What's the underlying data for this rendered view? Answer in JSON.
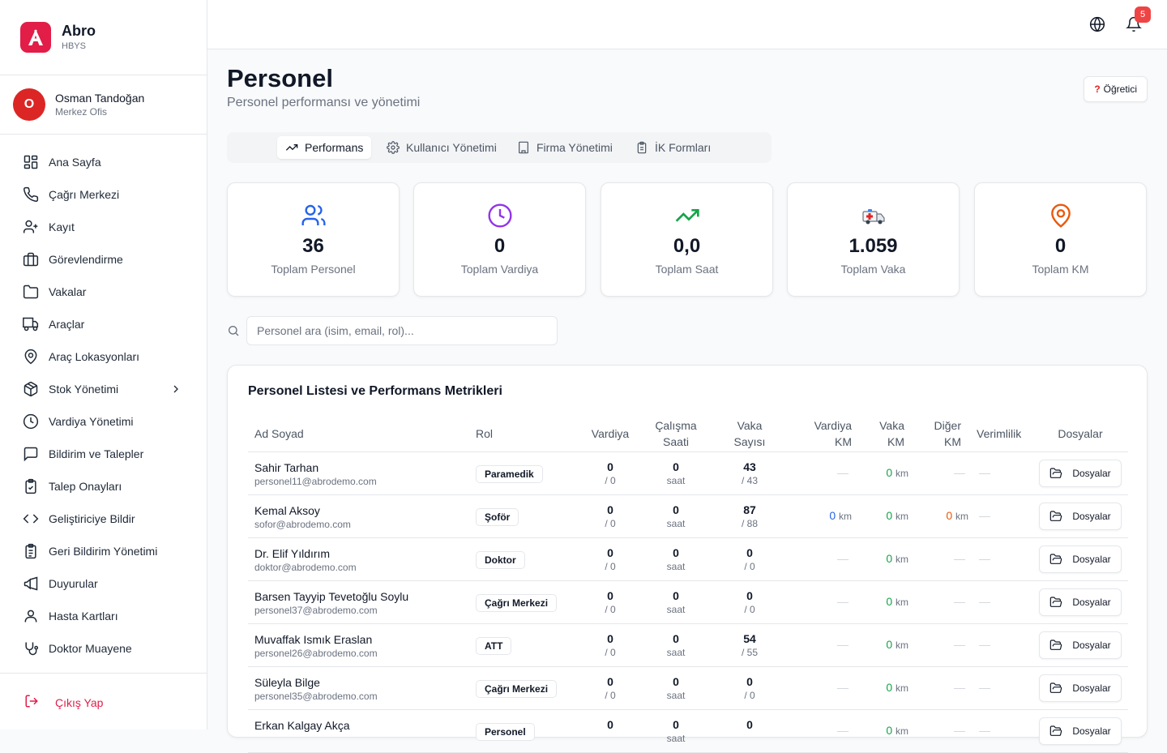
{
  "brand": {
    "name": "Abro",
    "sub": "HBYS",
    "logo_letter": "A",
    "color": "#e11d48"
  },
  "user": {
    "initial": "O",
    "name": "Osman Tandoğan",
    "role": "Merkez Ofis"
  },
  "nav": [
    {
      "label": "Ana Sayfa",
      "icon": "dashboard-icon"
    },
    {
      "label": "Çağrı Merkezi",
      "icon": "phone-icon"
    },
    {
      "label": "Kayıt",
      "icon": "user-plus-icon"
    },
    {
      "label": "Görevlendirme",
      "icon": "briefcase-icon"
    },
    {
      "label": "Vakalar",
      "icon": "folder-icon"
    },
    {
      "label": "Araçlar",
      "icon": "truck-icon"
    },
    {
      "label": "Araç Lokasyonları",
      "icon": "map-pin-icon"
    },
    {
      "label": "Stok Yönetimi",
      "icon": "package-icon"
    },
    {
      "label": "Vardiya Yönetimi",
      "icon": "clock-icon"
    },
    {
      "label": "Bildirim ve Talepler",
      "icon": "message-icon"
    },
    {
      "label": "Talep Onayları",
      "icon": "clipboard-check-icon"
    },
    {
      "label": "Geliştiriciye Bildir",
      "icon": "code-icon"
    },
    {
      "label": "Geri Bildirim Yönetimi",
      "icon": "clipboard-list-icon"
    },
    {
      "label": "Duyurular",
      "icon": "megaphone-icon"
    },
    {
      "label": "Hasta Kartları",
      "icon": "user-icon"
    },
    {
      "label": "Doktor Muayene",
      "icon": "stethoscope-icon"
    }
  ],
  "logout_label": "Çıkış Yap",
  "topbar": {
    "notification_count": "5"
  },
  "page": {
    "title": "Personel",
    "subtitle": "Personel performansı ve yönetimi",
    "tutorial_label": "Öğretici"
  },
  "tabs": [
    {
      "label": "Performans",
      "icon": "trending-up-icon",
      "active": true
    },
    {
      "label": "Kullanıcı Yönetimi",
      "icon": "gear-icon",
      "active": false
    },
    {
      "label": "Firma Yönetimi",
      "icon": "building-icon",
      "active": false
    },
    {
      "label": "İK Formları",
      "icon": "clipboard-icon",
      "active": false
    }
  ],
  "stats": [
    {
      "value": "36",
      "label": "Toplam Personel",
      "icon": "users-icon",
      "color": "#2563eb"
    },
    {
      "value": "0",
      "label": "Toplam Vardiya",
      "icon": "clock-icon",
      "color": "#9333ea"
    },
    {
      "value": "0,0",
      "label": "Toplam Saat",
      "icon": "trending-up-icon",
      "color": "#16a34a"
    },
    {
      "value": "1.059",
      "label": "Toplam Vaka",
      "icon": "ambulance-icon",
      "color": "#dc2626"
    },
    {
      "value": "0",
      "label": "Toplam KM",
      "icon": "map-pin-icon",
      "color": "#ea580c"
    }
  ],
  "search": {
    "placeholder": "Personel ara (isim, email, rol)..."
  },
  "table": {
    "title": "Personel Listesi ve Performans Metrikleri",
    "headers": {
      "name": "Ad Soyad",
      "role": "Rol",
      "shift": "Vardiya",
      "hours_1": "Çalışma",
      "hours_2": "Saati",
      "cases_1": "Vaka",
      "cases_2": "Sayısı",
      "shift_km_1": "Vardiya",
      "shift_km_2": "KM",
      "case_km_1": "Vaka",
      "case_km_2": "KM",
      "other_km_1": "Diğer",
      "other_km_2": "KM",
      "efficiency": "Verimlilik",
      "files": "Dosyalar"
    },
    "dash": "—",
    "km_unit": "km",
    "hours_unit": "saat",
    "files_label": "Dosyalar",
    "rows": [
      {
        "name": "Sahir Tarhan",
        "email": "personel11@abrodemo.com",
        "role": "Paramedik",
        "shift": "0",
        "shift_total": "/ 0",
        "hours": "0",
        "cases": "43",
        "cases_total": "/ 43",
        "shift_km": null,
        "case_km": "0",
        "other_km": null,
        "efficiency": null
      },
      {
        "name": "Kemal Aksoy",
        "email": "sofor@abrodemo.com",
        "role": "Şoför",
        "shift": "0",
        "shift_total": "/ 0",
        "hours": "0",
        "cases": "87",
        "cases_total": "/ 88",
        "shift_km": "0",
        "case_km": "0",
        "other_km": "0",
        "efficiency": null
      },
      {
        "name": "Dr. Elif Yıldırım",
        "email": "doktor@abrodemo.com",
        "role": "Doktor",
        "shift": "0",
        "shift_total": "/ 0",
        "hours": "0",
        "cases": "0",
        "cases_total": "/ 0",
        "shift_km": null,
        "case_km": "0",
        "other_km": null,
        "efficiency": null
      },
      {
        "name": "Barsen Tayyip Tevetoğlu Soylu",
        "email": "personel37@abrodemo.com",
        "role": "Çağrı Merkezi",
        "shift": "0",
        "shift_total": "/ 0",
        "hours": "0",
        "cases": "0",
        "cases_total": "/ 0",
        "shift_km": null,
        "case_km": "0",
        "other_km": null,
        "efficiency": null
      },
      {
        "name": "Muvaffak Ismık Eraslan",
        "email": "personel26@abrodemo.com",
        "role": "ATT",
        "shift": "0",
        "shift_total": "/ 0",
        "hours": "0",
        "cases": "54",
        "cases_total": "/ 55",
        "shift_km": null,
        "case_km": "0",
        "other_km": null,
        "efficiency": null
      },
      {
        "name": "Süleyla Bilge",
        "email": "personel35@abrodemo.com",
        "role": "Çağrı Merkezi",
        "shift": "0",
        "shift_total": "/ 0",
        "hours": "0",
        "cases": "0",
        "cases_total": "/ 0",
        "shift_km": null,
        "case_km": "0",
        "other_km": null,
        "efficiency": null
      },
      {
        "name": "Erkan Kalgay Akça",
        "email": "",
        "role": "Personel",
        "shift": "0",
        "shift_total": "",
        "hours": "0",
        "cases": "0",
        "cases_total": "",
        "shift_km": null,
        "case_km": "0",
        "other_km": null,
        "efficiency": null
      }
    ]
  }
}
